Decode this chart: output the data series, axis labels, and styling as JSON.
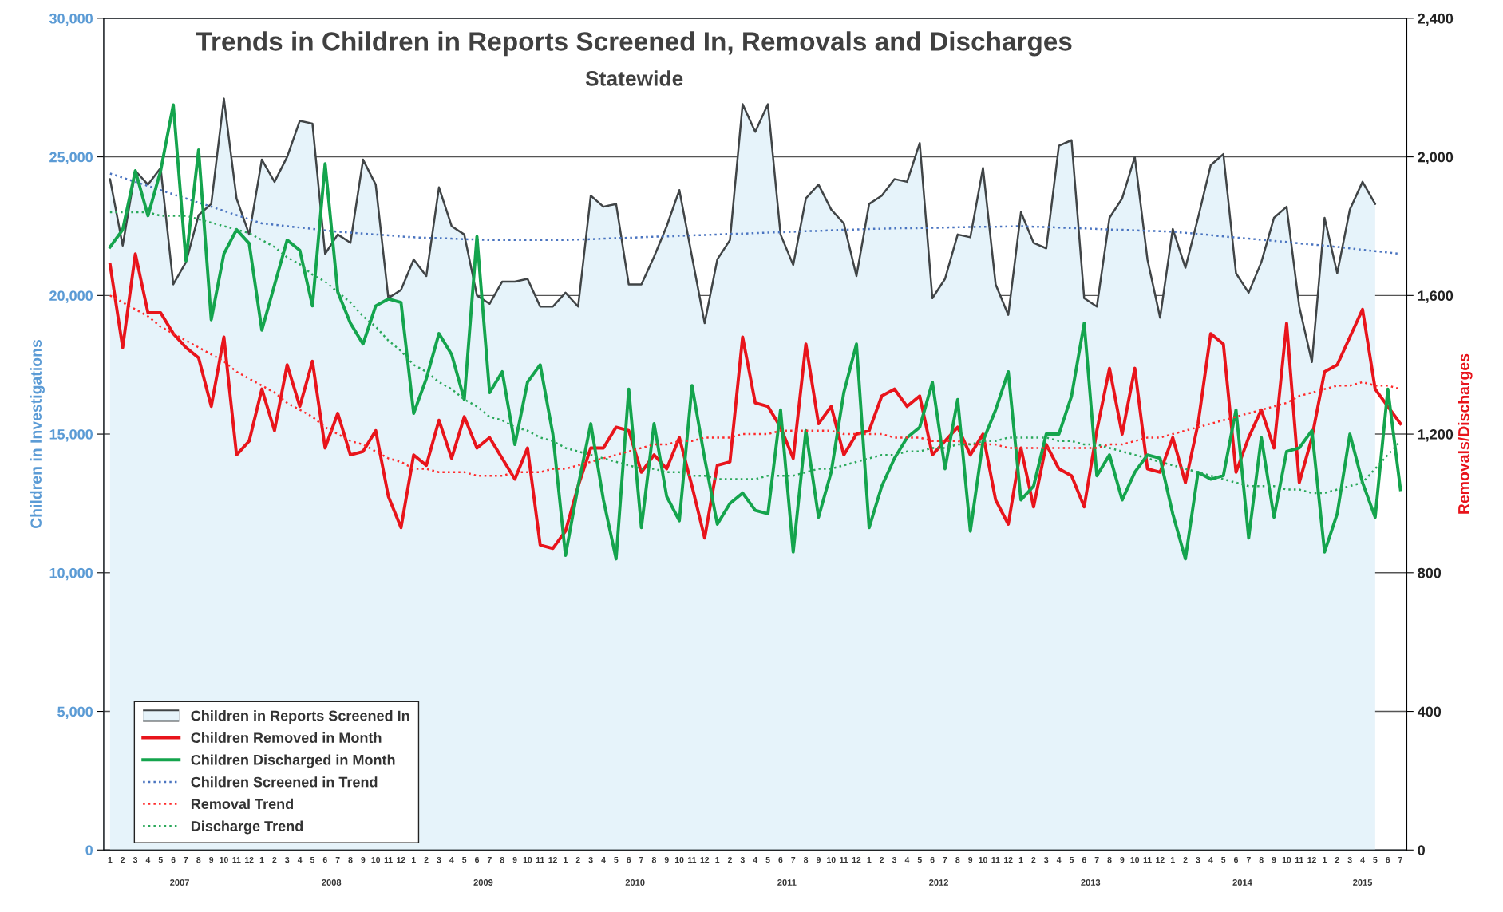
{
  "chart_data": {
    "type": "line",
    "title": "Trends in Children in Reports Screened In, Removals and Discharges",
    "subtitle": "Statewide",
    "ylabel": "Children in Investigations",
    "y2label": "Removals/Discharges",
    "categories": [
      "1",
      "2",
      "3",
      "4",
      "5",
      "6",
      "7",
      "8",
      "9",
      "10",
      "11",
      "12",
      "1",
      "2",
      "3",
      "4",
      "5",
      "6",
      "7",
      "8",
      "9",
      "10",
      "11",
      "12",
      "1",
      "2",
      "3",
      "4",
      "5",
      "6",
      "7",
      "8",
      "9",
      "10",
      "11",
      "12",
      "1",
      "2",
      "3",
      "4",
      "5",
      "6",
      "7",
      "8",
      "9",
      "10",
      "11",
      "12",
      "1",
      "2",
      "3",
      "4",
      "5",
      "6",
      "7",
      "8",
      "9",
      "10",
      "11",
      "12",
      "1",
      "2",
      "3",
      "4",
      "5",
      "6",
      "7",
      "8",
      "9",
      "10",
      "11",
      "12",
      "1",
      "2",
      "3",
      "4",
      "5",
      "6",
      "7",
      "8",
      "9",
      "10",
      "11",
      "12",
      "1",
      "2",
      "3",
      "4",
      "5",
      "6",
      "7",
      "8",
      "9",
      "10",
      "11",
      "12",
      "1",
      "2",
      "3",
      "4",
      "5",
      "6",
      "7"
    ],
    "ylim": [
      0,
      30000
    ],
    "yticks": [
      0,
      {
        "value": 5000,
        "label": "5,000"
      },
      {
        "value": 10000,
        "label": "10,000"
      },
      {
        "value": 15000,
        "label": "15,000"
      },
      {
        "value": 20000,
        "label": "20,000"
      },
      {
        "value": 25000,
        "label": "25,000"
      },
      {
        "value": 30000,
        "label": "30,000"
      }
    ],
    "y2lim": [
      0,
      2400
    ],
    "y2ticks": [
      0,
      400,
      800,
      {
        "value": 1200,
        "label": "1,200"
      },
      {
        "value": 1600,
        "label": "1,600"
      },
      {
        "value": 2000,
        "label": "2,000"
      },
      {
        "value": 2400,
        "label": "2,400"
      }
    ],
    "grid": "y",
    "legend": "bottom left",
    "annotations": [
      "2007",
      "2008",
      "2009",
      "2010",
      "2011",
      "2012",
      "2013",
      "2014",
      "2015"
    ],
    "series": [
      {
        "name": "Children in Reports Screened In",
        "type": "area",
        "color": "#e6f3fa",
        "values": [
          24200,
          21800,
          24500,
          24000,
          24600,
          20400,
          21200,
          22900,
          23300,
          27100,
          23500,
          22200,
          24900,
          24100,
          25000,
          26300,
          26200,
          21500,
          22200,
          21900,
          24900,
          24000,
          19900,
          20200,
          21300,
          20700,
          23900,
          22500,
          22200,
          20000,
          19700,
          20500,
          20500,
          20600,
          19600,
          19600,
          20100,
          19600,
          23600,
          23200,
          23300,
          20400,
          20400,
          21400,
          22500,
          23800,
          21400,
          19000,
          21300,
          22000,
          26900,
          25900,
          26900,
          22200,
          21100,
          23500,
          24000,
          23100,
          22600,
          20700,
          23300,
          23600,
          24200,
          24100,
          25500,
          19900,
          20600,
          22200,
          22100,
          24600,
          20400,
          19300,
          23000,
          21900,
          21700,
          25400,
          25600,
          19900,
          19600,
          22800,
          23500,
          25000,
          21300,
          19200,
          22400,
          21000,
          22800,
          24700,
          25100,
          20800,
          20100,
          21200,
          22800,
          23200,
          19600,
          17600,
          22800,
          20800,
          23100,
          24100,
          23300,
          null,
          null
        ]
      },
      {
        "name": "Children Removed in Month",
        "axis": "y2",
        "color": "#e8141b",
        "values": [
          1690,
          1450,
          1720,
          1550,
          1550,
          1490,
          1450,
          1420,
          1280,
          1480,
          1140,
          1180,
          1330,
          1210,
          1400,
          1280,
          1410,
          1160,
          1260,
          1140,
          1150,
          1210,
          1020,
          930,
          1140,
          1110,
          1240,
          1130,
          1250,
          1160,
          1190,
          1130,
          1070,
          1160,
          880,
          870,
          920,
          1050,
          1160,
          1160,
          1220,
          1210,
          1090,
          1140,
          1100,
          1190,
          1050,
          900,
          1110,
          1120,
          1480,
          1290,
          1280,
          1220,
          1130,
          1460,
          1230,
          1280,
          1140,
          1200,
          1210,
          1310,
          1330,
          1280,
          1310,
          1140,
          1180,
          1220,
          1140,
          1200,
          1010,
          940,
          1160,
          990,
          1170,
          1100,
          1080,
          990,
          1210,
          1390,
          1200,
          1390,
          1100,
          1090,
          1190,
          1060,
          1230,
          1490,
          1460,
          1090,
          1190,
          1270,
          1160,
          1520,
          1060,
          1190,
          1380,
          1400,
          1480,
          1560,
          1330,
          1280,
          1230
        ]
      },
      {
        "name": "Children Discharged in Month",
        "axis": "y2",
        "color": "#14a44d",
        "values": [
          1740,
          1790,
          1960,
          1830,
          1960,
          2150,
          1700,
          2020,
          1530,
          1720,
          1790,
          1750,
          1500,
          1630,
          1760,
          1730,
          1570,
          1980,
          1610,
          1520,
          1460,
          1570,
          1590,
          1580,
          1260,
          1360,
          1490,
          1430,
          1300,
          1770,
          1320,
          1380,
          1170,
          1350,
          1400,
          1200,
          850,
          1050,
          1230,
          1010,
          840,
          1330,
          930,
          1230,
          1020,
          950,
          1340,
          1130,
          940,
          1000,
          1030,
          980,
          970,
          1270,
          860,
          1210,
          960,
          1090,
          1320,
          1460,
          930,
          1050,
          1130,
          1190,
          1220,
          1350,
          1100,
          1300,
          920,
          1180,
          1270,
          1380,
          1010,
          1050,
          1200,
          1200,
          1310,
          1520,
          1080,
          1140,
          1010,
          1090,
          1140,
          1130,
          970,
          840,
          1090,
          1070,
          1080,
          1270,
          900,
          1190,
          960,
          1150,
          1160,
          1210,
          860,
          970,
          1200,
          1060,
          960,
          1330,
          1040
        ]
      },
      {
        "name": "Children Screened in Trend",
        "line_style": "dotted",
        "color": "#4a74c0",
        "values": [
          24400,
          24250,
          24100,
          23950,
          23800,
          23650,
          23500,
          23350,
          23200,
          23050,
          22900,
          22750,
          22600,
          22550,
          22500,
          22450,
          22400,
          22350,
          22300,
          22270,
          22230,
          22200,
          22170,
          22130,
          22100,
          22080,
          22070,
          22050,
          22030,
          22020,
          22000,
          22000,
          22000,
          22000,
          22000,
          22000,
          22000,
          22020,
          22030,
          22050,
          22070,
          22080,
          22100,
          22120,
          22130,
          22150,
          22170,
          22180,
          22200,
          22220,
          22230,
          22250,
          22270,
          22280,
          22300,
          22320,
          22330,
          22350,
          22370,
          22380,
          22400,
          22410,
          22420,
          22430,
          22430,
          22440,
          22450,
          22460,
          22470,
          22480,
          22480,
          22490,
          22500,
          22480,
          22470,
          22450,
          22430,
          22420,
          22400,
          22380,
          22370,
          22350,
          22330,
          22320,
          22300,
          22260,
          22220,
          22180,
          22130,
          22090,
          22050,
          22010,
          21970,
          21930,
          21880,
          21840,
          21800,
          21750,
          21700,
          21650,
          21600,
          21550,
          21500
        ]
      },
      {
        "name": "Removal Trend",
        "axis": "y2",
        "line_style": "dotted",
        "color": "#ff2a2a",
        "values": [
          1600,
          1580,
          1560,
          1540,
          1510,
          1490,
          1470,
          1450,
          1430,
          1410,
          1380,
          1360,
          1340,
          1320,
          1290,
          1270,
          1250,
          1220,
          1200,
          1180,
          1170,
          1150,
          1130,
          1120,
          1100,
          1100,
          1090,
          1090,
          1090,
          1080,
          1080,
          1080,
          1090,
          1090,
          1090,
          1100,
          1100,
          1110,
          1120,
          1130,
          1140,
          1150,
          1160,
          1170,
          1170,
          1180,
          1180,
          1190,
          1190,
          1190,
          1200,
          1200,
          1200,
          1210,
          1210,
          1210,
          1210,
          1210,
          1200,
          1200,
          1200,
          1200,
          1190,
          1190,
          1190,
          1180,
          1180,
          1180,
          1170,
          1170,
          1170,
          1160,
          1160,
          1160,
          1160,
          1160,
          1160,
          1160,
          1160,
          1170,
          1170,
          1180,
          1190,
          1190,
          1200,
          1210,
          1220,
          1230,
          1240,
          1250,
          1260,
          1270,
          1280,
          1290,
          1310,
          1320,
          1330,
          1340,
          1340,
          1350,
          1340,
          1340,
          1330
        ]
      },
      {
        "name": "Discharge Trend",
        "axis": "y2",
        "line_style": "dotted",
        "color": "#2aa85a",
        "values": [
          1840,
          1840,
          1840,
          1840,
          1830,
          1830,
          1830,
          1820,
          1810,
          1800,
          1790,
          1780,
          1760,
          1740,
          1710,
          1690,
          1660,
          1640,
          1610,
          1580,
          1540,
          1510,
          1470,
          1440,
          1400,
          1380,
          1350,
          1330,
          1300,
          1280,
          1250,
          1240,
          1220,
          1210,
          1190,
          1180,
          1160,
          1150,
          1140,
          1130,
          1120,
          1110,
          1100,
          1100,
          1090,
          1090,
          1080,
          1080,
          1070,
          1070,
          1070,
          1070,
          1080,
          1080,
          1080,
          1090,
          1100,
          1100,
          1110,
          1120,
          1130,
          1140,
          1140,
          1150,
          1150,
          1160,
          1160,
          1170,
          1170,
          1180,
          1180,
          1190,
          1190,
          1190,
          1190,
          1180,
          1180,
          1170,
          1170,
          1160,
          1150,
          1140,
          1130,
          1120,
          1110,
          1100,
          1090,
          1080,
          1070,
          1060,
          1050,
          1050,
          1050,
          1040,
          1040,
          1030,
          1030,
          1040,
          1050,
          1060,
          1100,
          1140,
          1180
        ]
      }
    ]
  }
}
